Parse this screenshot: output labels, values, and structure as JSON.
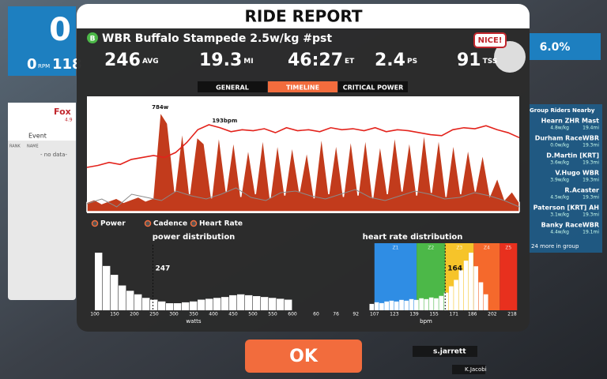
{
  "background": {
    "left_panel": {
      "big_digit": "0",
      "cadence": "0",
      "cadence_unit": "RPM",
      "power": "118",
      "rider": "Fox",
      "rider_wkg": "4.9",
      "event": "Event",
      "col_rank": "RANK",
      "col_name": "NAME",
      "empty": "- no data-"
    },
    "grade": "6.0%",
    "group": {
      "title": "Group Riders Nearby",
      "riders": [
        {
          "name": "Hearn ZHR Mast",
          "wkg": "4.8w/kg",
          "dist": "19.4mi"
        },
        {
          "name": "Durham RaceWBR",
          "wkg": "0.0w/kg",
          "dist": "19.3mi"
        },
        {
          "name": "D.Martin [KRT]",
          "wkg": "3.6w/kg",
          "dist": "19.3mi"
        },
        {
          "name": "V.Hugo WBR",
          "wkg": "3.9w/kg",
          "dist": "19.3mi"
        },
        {
          "name": "R.Acaster",
          "wkg": "4.5w/kg",
          "dist": "19.3mi"
        },
        {
          "name": "Paterson [KRT] AH",
          "wkg": "3.1w/kg",
          "dist": "19.3mi"
        },
        {
          "name": "Banky RaceWBR",
          "wkg": "4.4w/kg",
          "dist": "19.1mi"
        }
      ],
      "more": "24 more in group"
    },
    "nameplates": [
      "s.jarrett",
      "K.Jacobi"
    ]
  },
  "header": {
    "title": "RIDE REPORT",
    "badge": "NICE!"
  },
  "event": {
    "category": "B",
    "name": "WBR Buffalo Stampede 2.5w/kg #pst"
  },
  "stats": [
    {
      "value": "246",
      "unit": "AVG"
    },
    {
      "value": "19.3",
      "unit": "MI"
    },
    {
      "value": "46:27",
      "unit": "ET"
    },
    {
      "value": "2.4",
      "unit": "PS"
    },
    {
      "value": "91",
      "unit": "TSS"
    }
  ],
  "tabs": [
    {
      "label": "GENERAL",
      "active": false
    },
    {
      "label": "TIMELINE",
      "active": true
    },
    {
      "label": "CRITICAL POWER",
      "active": false
    }
  ],
  "timeline": {
    "type": "line",
    "power": [
      120,
      140,
      110,
      130,
      150,
      120,
      140,
      160,
      130,
      150,
      784,
      700,
      200,
      650,
      180,
      600,
      550,
      150,
      620,
      200,
      580,
      160,
      520,
      180,
      600,
      150,
      560,
      170,
      540,
      200,
      500,
      150,
      610,
      180,
      560,
      160,
      590,
      170,
      600,
      150,
      550,
      180,
      620,
      200,
      580,
      170,
      640,
      190,
      600,
      160,
      560,
      180,
      520,
      200,
      480,
      170,
      300,
      140,
      200,
      120
    ],
    "heart_rate": [
      150,
      152,
      155,
      153,
      158,
      160,
      162,
      160,
      165,
      175,
      188,
      193,
      190,
      186,
      188,
      187,
      189,
      185,
      190,
      187,
      188,
      186,
      190,
      188,
      189,
      187,
      190,
      186,
      188,
      187,
      185,
      183,
      182,
      188,
      190,
      189,
      192,
      188,
      185,
      180
    ],
    "cadence": [
      82,
      85,
      80,
      88,
      86,
      84,
      90,
      87,
      85,
      88,
      92,
      86,
      84,
      89,
      90,
      87,
      85,
      88,
      91,
      86,
      84,
      87,
      90,
      88,
      85,
      86,
      89,
      87,
      84,
      80
    ],
    "power_color": "#c23b1c",
    "hr_color": "#e3221b",
    "cadence_color": "#8a8a8a",
    "power_peak_label": "784w",
    "hr_peak_label": "193bpm"
  },
  "legend": [
    "Power",
    "Cadence",
    "Heart Rate"
  ],
  "power_distribution": {
    "type": "histogram",
    "title": "power distribution",
    "bins": [
      100,
      120,
      140,
      160,
      180,
      200,
      220,
      240,
      260,
      280,
      300,
      320,
      340,
      360,
      380,
      400,
      420,
      440,
      460,
      480,
      500,
      520,
      540,
      560,
      580,
      600
    ],
    "counts": [
      65,
      50,
      40,
      28,
      22,
      18,
      14,
      12,
      10,
      8,
      8,
      9,
      10,
      12,
      13,
      14,
      15,
      17,
      18,
      17,
      16,
      15,
      14,
      13,
      12
    ],
    "xlim": [
      100,
      600
    ],
    "xticks": [
      100,
      150,
      200,
      250,
      300,
      350,
      400,
      450,
      500,
      550,
      600
    ],
    "xlabel": "watts",
    "marker": 247,
    "color": "#ffffff"
  },
  "hr_distribution": {
    "type": "histogram",
    "title": "heart rate distribution",
    "bins": [
      103,
      107,
      111,
      115,
      119,
      123,
      127,
      131,
      135,
      139,
      143,
      147,
      151,
      155,
      159,
      163,
      167,
      171,
      175,
      179,
      183,
      187,
      191,
      195,
      199
    ],
    "counts": [
      8,
      10,
      9,
      11,
      12,
      11,
      13,
      12,
      14,
      13,
      15,
      14,
      16,
      15,
      18,
      22,
      30,
      38,
      50,
      62,
      72,
      55,
      35,
      20
    ],
    "xlim": [
      60,
      218
    ],
    "xticks": [
      60,
      76,
      92,
      107,
      123,
      139,
      155,
      171,
      186,
      202,
      218
    ],
    "xlabel": "bpm",
    "marker": 164,
    "color": "#ffffff",
    "zones": [
      {
        "label": "Z1",
        "from": 107,
        "to": 141,
        "color": "#2f8de4"
      },
      {
        "label": "Z2",
        "from": 141,
        "to": 164,
        "color": "#4cb848"
      },
      {
        "label": "Z3",
        "from": 164,
        "to": 187,
        "color": "#f6c42a"
      },
      {
        "label": "Z4",
        "from": 187,
        "to": 208,
        "color": "#f5692c"
      },
      {
        "label": "Z5",
        "from": 208,
        "to": 222,
        "color": "#e8301e"
      }
    ]
  },
  "button": "OK"
}
